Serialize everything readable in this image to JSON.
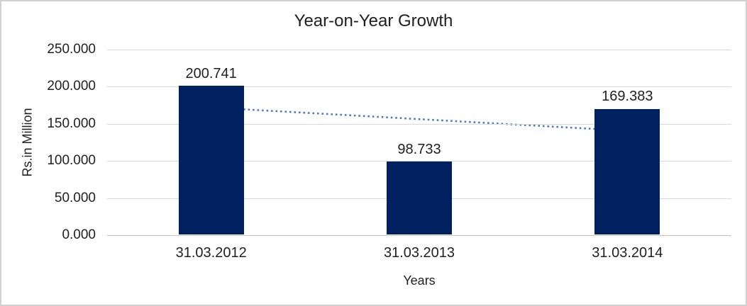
{
  "chart_data": {
    "type": "bar",
    "title": "Year-on-Year Growth",
    "xlabel": "Years",
    "ylabel": "Rs.in Million",
    "categories": [
      "31.03.2012",
      "31.03.2013",
      "31.03.2014"
    ],
    "values": [
      200.741,
      98.733,
      169.383
    ],
    "value_labels": [
      "200.741",
      "98.733",
      "169.383"
    ],
    "ylim": [
      0,
      250
    ],
    "yticks": [
      0,
      50,
      100,
      150,
      200,
      250
    ],
    "ytick_labels": [
      "0.000",
      "50.000",
      "100.000",
      "150.000",
      "200.000",
      "250.000"
    ],
    "grid": true,
    "legend": "none",
    "bar_color": "#002060",
    "gridline_color": "#d9d9d9",
    "axis_line_color": "#c3c3c3",
    "text_color": "#1f1f1f",
    "chart_border_color": "#d1d1d1",
    "trendline": {
      "type": "linear",
      "style": "dotted",
      "color": "#4a7dbe",
      "values": [
        171.97,
        140.61
      ]
    }
  }
}
